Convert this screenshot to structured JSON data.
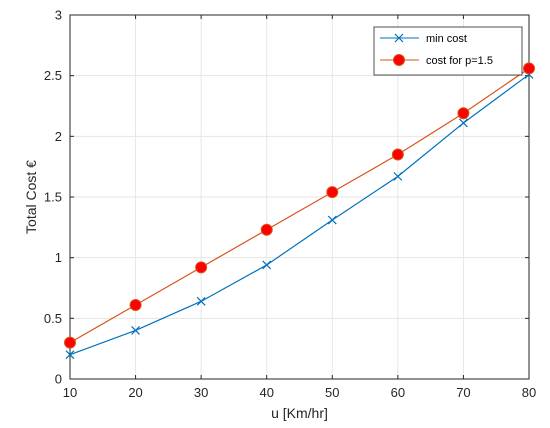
{
  "chart_data": {
    "type": "line",
    "xlabel": "u [Km/hr]",
    "ylabel": "Total Cost €",
    "xlim": [
      10,
      80
    ],
    "ylim": [
      0,
      3
    ],
    "x": [
      10,
      20,
      30,
      40,
      50,
      60,
      70,
      80
    ],
    "xticks": [
      10,
      20,
      30,
      40,
      50,
      60,
      70,
      80
    ],
    "yticks": [
      0,
      0.5,
      1,
      1.5,
      2,
      2.5,
      3
    ],
    "ytick_labels": [
      "0",
      "0.5",
      "1",
      "1.5",
      "2",
      "2.5",
      "3"
    ],
    "grid": true,
    "legend_position": "top-right",
    "series": [
      {
        "name": "min cost",
        "marker": "x",
        "color": "#0072BD",
        "values": [
          0.2,
          0.4,
          0.64,
          0.94,
          1.31,
          1.67,
          2.11,
          2.51
        ]
      },
      {
        "name": "cost for p=1.5",
        "marker": "o",
        "color": "#D95319",
        "marker_color": "#FF0000",
        "values": [
          0.3,
          0.61,
          0.92,
          1.23,
          1.54,
          1.85,
          2.19,
          2.56
        ]
      }
    ]
  }
}
